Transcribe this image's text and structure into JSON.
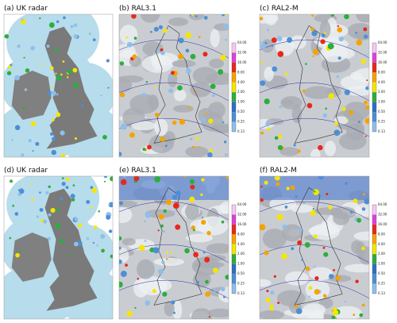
{
  "panels": [
    {
      "title": "(a) UK radar",
      "kind": "radar",
      "colorbar": false
    },
    {
      "title": "(b) RAL3.1",
      "kind": "model",
      "colorbar": true
    },
    {
      "title": "(c) RAL2-M",
      "kind": "model",
      "colorbar": true
    },
    {
      "title": "(d) UK radar",
      "kind": "radar",
      "colorbar": false
    },
    {
      "title": "(e) RAL3.1",
      "kind": "model",
      "colorbar": true
    },
    {
      "title": "(f) RAL2-M",
      "kind": "model",
      "colorbar": true
    }
  ],
  "colorbar": {
    "ticks": [
      "64.00",
      "32.00",
      "16.00",
      "8.00",
      "4.00",
      "2.00",
      "1.00",
      "0.50",
      "0.25",
      "0.13"
    ],
    "colors": [
      "#f4c8f4",
      "#e040d8",
      "#e8281c",
      "#f5a300",
      "#f5e600",
      "#2cae3c",
      "#2f6fc4",
      "#4d8fd6",
      "#8fbfea"
    ]
  }
}
